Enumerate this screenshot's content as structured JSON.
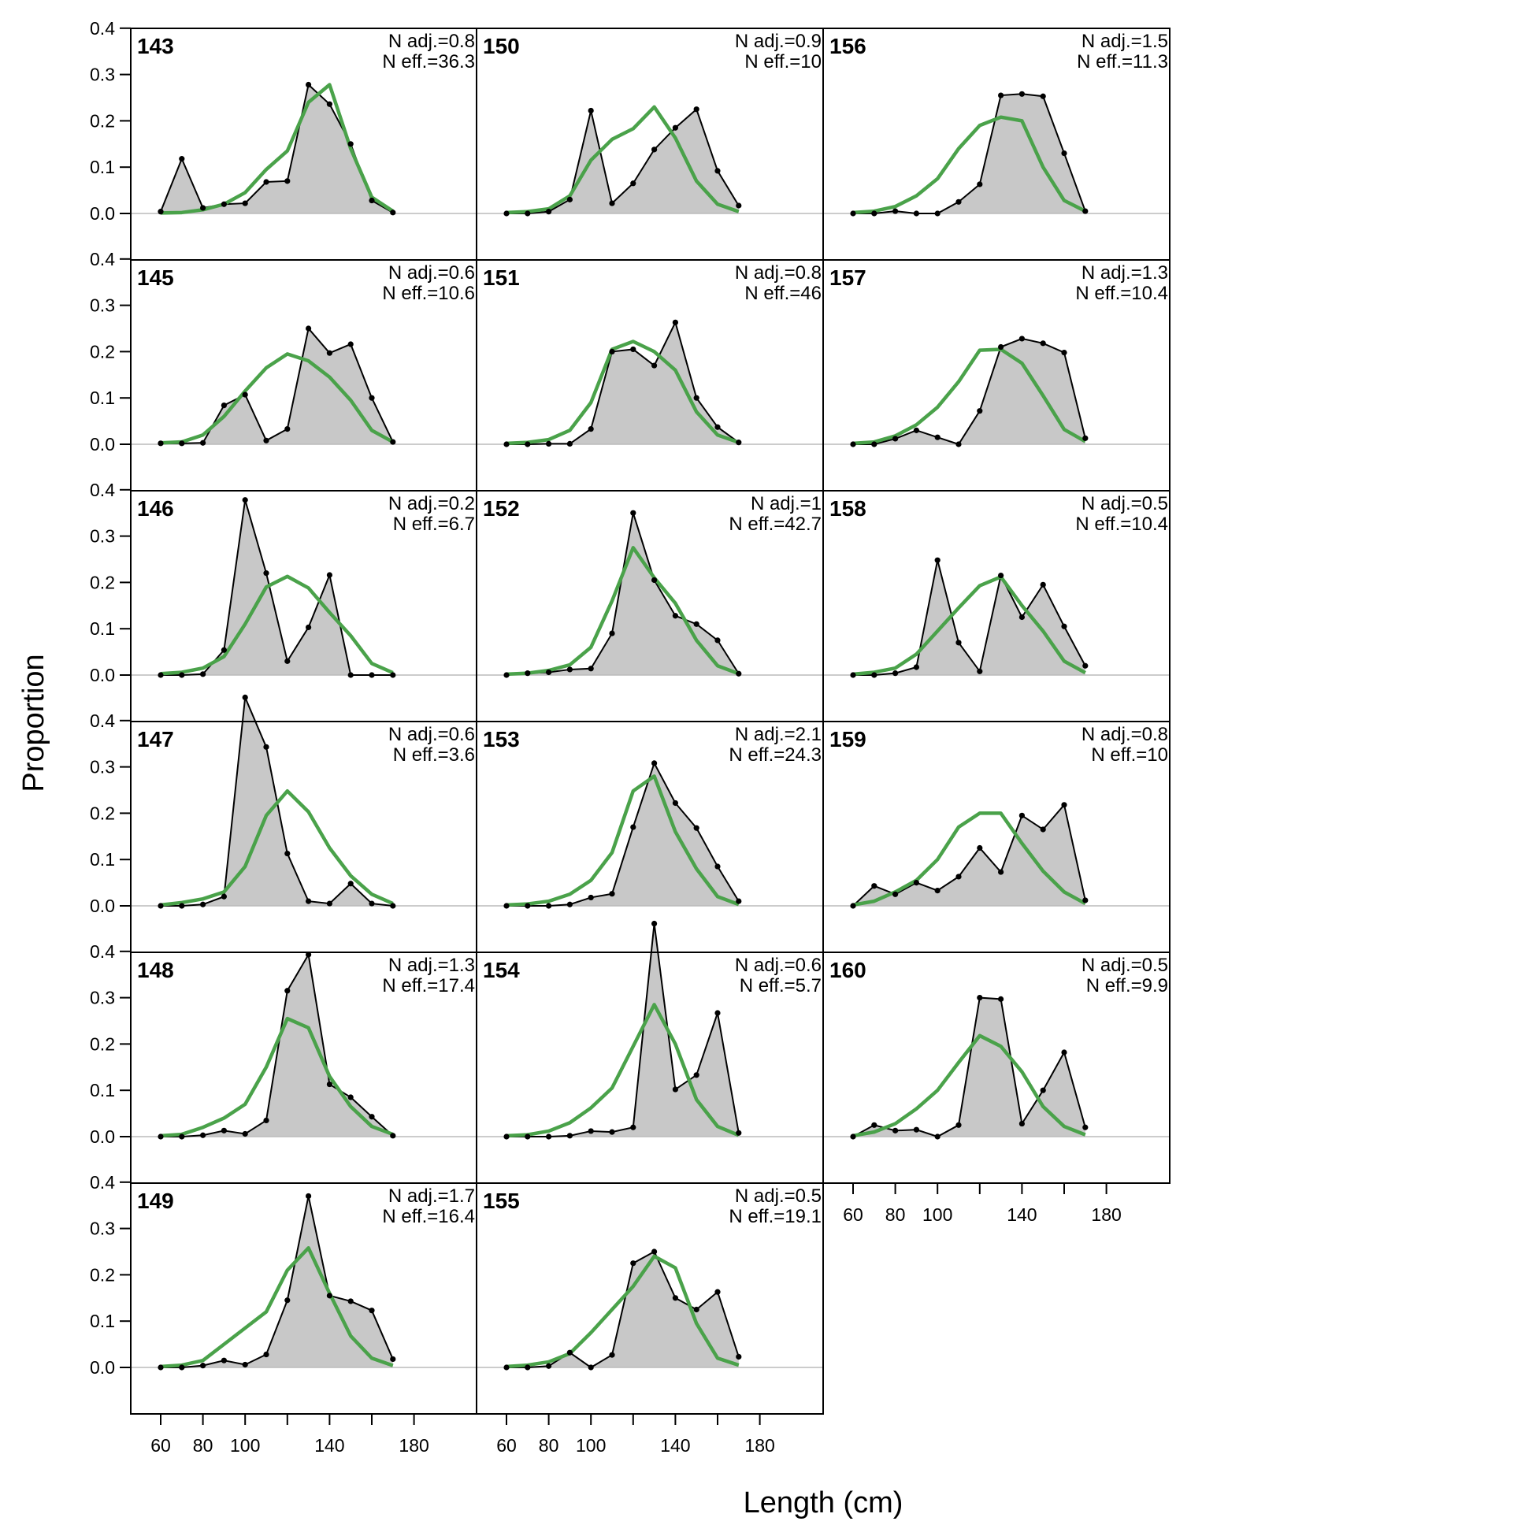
{
  "chart_data": {
    "type": "area",
    "xlabel": "Length (cm)",
    "ylabel": "Proportion",
    "xlim": [
      50,
      180
    ],
    "ylim": [
      0,
      0.45
    ],
    "x_ticks": [
      "60",
      "80",
      "100",
      "140",
      "180"
    ],
    "y_ticks": [
      "0.0",
      "0.1",
      "0.2",
      "0.3",
      "0.4"
    ],
    "x": [
      60,
      70,
      80,
      90,
      100,
      110,
      120,
      130,
      140,
      150,
      160,
      170
    ],
    "colors": {
      "observed_fill": "#c8c8c8",
      "observed_line": "#000000",
      "expected_line": "#4aa24a",
      "baseline": "#bbbbbb"
    },
    "panels": [
      {
        "label": "143",
        "adj": "N adj.=0.8",
        "eff": "N eff.=36.3",
        "observed": [
          0.004,
          0.118,
          0.012,
          0.02,
          0.022,
          0.068,
          0.07,
          0.278,
          0.236,
          0.15,
          0.028,
          0.002
        ],
        "expected": [
          0.001,
          0.002,
          0.008,
          0.02,
          0.045,
          0.095,
          0.135,
          0.24,
          0.278,
          0.14,
          0.035,
          0.005
        ]
      },
      {
        "label": "145",
        "adj": "N adj.=0.6",
        "eff": "N eff.=10.6",
        "observed": [
          0.002,
          0.002,
          0.003,
          0.084,
          0.107,
          0.008,
          0.033,
          0.25,
          0.197,
          0.216,
          0.1,
          0.005
        ],
        "expected": [
          0.003,
          0.005,
          0.02,
          0.06,
          0.115,
          0.165,
          0.195,
          0.18,
          0.145,
          0.095,
          0.03,
          0.005
        ]
      },
      {
        "label": "146",
        "adj": "N adj.=0.2",
        "eff": "N eff.=6.7",
        "observed": [
          0.0,
          0.0,
          0.002,
          0.054,
          0.378,
          0.22,
          0.03,
          0.103,
          0.216,
          0.0,
          0.0,
          0.0
        ],
        "expected": [
          0.003,
          0.006,
          0.015,
          0.04,
          0.11,
          0.19,
          0.213,
          0.188,
          0.135,
          0.085,
          0.025,
          0.005
        ]
      },
      {
        "label": "147",
        "adj": "N adj.=0.6",
        "eff": "N eff.=3.6",
        "observed": [
          0.0,
          0.0,
          0.003,
          0.02,
          0.45,
          0.343,
          0.113,
          0.01,
          0.005,
          0.048,
          0.005,
          0.0
        ],
        "expected": [
          0.002,
          0.007,
          0.015,
          0.03,
          0.085,
          0.195,
          0.248,
          0.203,
          0.125,
          0.065,
          0.025,
          0.005
        ]
      },
      {
        "label": "148",
        "adj": "N adj.=1.3",
        "eff": "N eff.=17.4",
        "observed": [
          0.0,
          0.0,
          0.003,
          0.013,
          0.006,
          0.035,
          0.315,
          0.393,
          0.113,
          0.085,
          0.043,
          0.002
        ],
        "expected": [
          0.002,
          0.005,
          0.02,
          0.04,
          0.07,
          0.15,
          0.255,
          0.235,
          0.13,
          0.065,
          0.022,
          0.005
        ]
      },
      {
        "label": "149",
        "adj": "N adj.=1.7",
        "eff": "N eff.=16.4",
        "observed": [
          0.0,
          0.0,
          0.004,
          0.015,
          0.006,
          0.028,
          0.145,
          0.37,
          0.155,
          0.143,
          0.123,
          0.018
        ],
        "expected": [
          0.002,
          0.005,
          0.015,
          0.05,
          0.085,
          0.12,
          0.21,
          0.258,
          0.16,
          0.068,
          0.02,
          0.004
        ]
      },
      {
        "label": "150",
        "adj": "N adj.=0.9",
        "eff": "N eff.=10",
        "observed": [
          0.0,
          0.0,
          0.004,
          0.03,
          0.222,
          0.022,
          0.065,
          0.138,
          0.185,
          0.225,
          0.092,
          0.017
        ],
        "expected": [
          0.002,
          0.004,
          0.01,
          0.038,
          0.115,
          0.16,
          0.183,
          0.23,
          0.163,
          0.07,
          0.02,
          0.004
        ]
      },
      {
        "label": "151",
        "adj": "N adj.=0.8",
        "eff": "N eff.=46",
        "observed": [
          0.0,
          0.0,
          0.001,
          0.001,
          0.033,
          0.2,
          0.205,
          0.17,
          0.263,
          0.1,
          0.037,
          0.004
        ],
        "expected": [
          0.002,
          0.004,
          0.01,
          0.03,
          0.09,
          0.205,
          0.222,
          0.2,
          0.16,
          0.07,
          0.02,
          0.004
        ]
      },
      {
        "label": "152",
        "adj": "N adj.=1",
        "eff": "N eff.=42.7",
        "observed": [
          0.0,
          0.004,
          0.006,
          0.012,
          0.014,
          0.09,
          0.35,
          0.205,
          0.128,
          0.11,
          0.075,
          0.003
        ],
        "expected": [
          0.002,
          0.004,
          0.01,
          0.022,
          0.06,
          0.16,
          0.275,
          0.21,
          0.155,
          0.075,
          0.02,
          0.003
        ]
      },
      {
        "label": "153",
        "adj": "N adj.=2.1",
        "eff": "N eff.=24.3",
        "observed": [
          0.0,
          0.0,
          0.0,
          0.003,
          0.018,
          0.026,
          0.17,
          0.308,
          0.222,
          0.168,
          0.085,
          0.01
        ],
        "expected": [
          0.002,
          0.004,
          0.01,
          0.025,
          0.055,
          0.115,
          0.248,
          0.28,
          0.16,
          0.08,
          0.02,
          0.003
        ]
      },
      {
        "label": "154",
        "adj": "N adj.=0.6",
        "eff": "N eff.=5.7",
        "observed": [
          0.0,
          0.0,
          0.0,
          0.002,
          0.012,
          0.01,
          0.02,
          0.46,
          0.102,
          0.133,
          0.267,
          0.008
        ],
        "expected": [
          0.002,
          0.004,
          0.012,
          0.03,
          0.062,
          0.105,
          0.195,
          0.285,
          0.2,
          0.08,
          0.022,
          0.003
        ]
      },
      {
        "label": "155",
        "adj": "N adj.=0.5",
        "eff": "N eff.=19.1",
        "observed": [
          0.0,
          0.0,
          0.003,
          0.032,
          0.0,
          0.027,
          0.225,
          0.25,
          0.15,
          0.125,
          0.163,
          0.023
        ],
        "expected": [
          0.002,
          0.005,
          0.012,
          0.03,
          0.075,
          0.125,
          0.175,
          0.24,
          0.215,
          0.095,
          0.02,
          0.005
        ]
      },
      {
        "label": "156",
        "adj": "N adj.=1.5",
        "eff": "N eff.=11.3",
        "observed": [
          0.0,
          0.0,
          0.005,
          0.0,
          0.0,
          0.025,
          0.063,
          0.255,
          0.258,
          0.253,
          0.13,
          0.005
        ],
        "expected": [
          0.002,
          0.005,
          0.015,
          0.038,
          0.075,
          0.14,
          0.19,
          0.208,
          0.2,
          0.1,
          0.028,
          0.005
        ]
      },
      {
        "label": "157",
        "adj": "N adj.=1.3",
        "eff": "N eff.=10.4",
        "observed": [
          0.0,
          0.0,
          0.012,
          0.03,
          0.015,
          0.0,
          0.072,
          0.21,
          0.228,
          0.218,
          0.198,
          0.013
        ],
        "expected": [
          0.002,
          0.005,
          0.018,
          0.042,
          0.08,
          0.135,
          0.203,
          0.205,
          0.175,
          0.105,
          0.032,
          0.006
        ]
      },
      {
        "label": "158",
        "adj": "N adj.=0.5",
        "eff": "N eff.=10.4",
        "observed": [
          0.0,
          0.0,
          0.004,
          0.017,
          0.248,
          0.07,
          0.008,
          0.215,
          0.125,
          0.195,
          0.105,
          0.02
        ],
        "expected": [
          0.002,
          0.006,
          0.015,
          0.045,
          0.095,
          0.145,
          0.193,
          0.212,
          0.15,
          0.095,
          0.03,
          0.005
        ]
      },
      {
        "label": "159",
        "adj": "N adj.=0.8",
        "eff": "N eff.=10",
        "observed": [
          0.0,
          0.043,
          0.025,
          0.05,
          0.033,
          0.063,
          0.125,
          0.073,
          0.195,
          0.165,
          0.218,
          0.012
        ],
        "expected": [
          0.002,
          0.01,
          0.03,
          0.055,
          0.1,
          0.17,
          0.2,
          0.2,
          0.135,
          0.075,
          0.03,
          0.005
        ]
      },
      {
        "label": "160",
        "adj": "N adj.=0.5",
        "eff": "N eff.=9.9",
        "observed": [
          0.0,
          0.025,
          0.013,
          0.015,
          0.0,
          0.025,
          0.3,
          0.297,
          0.028,
          0.1,
          0.182,
          0.02
        ],
        "expected": [
          0.002,
          0.01,
          0.028,
          0.06,
          0.1,
          0.16,
          0.218,
          0.195,
          0.14,
          0.065,
          0.022,
          0.004
        ]
      }
    ]
  }
}
